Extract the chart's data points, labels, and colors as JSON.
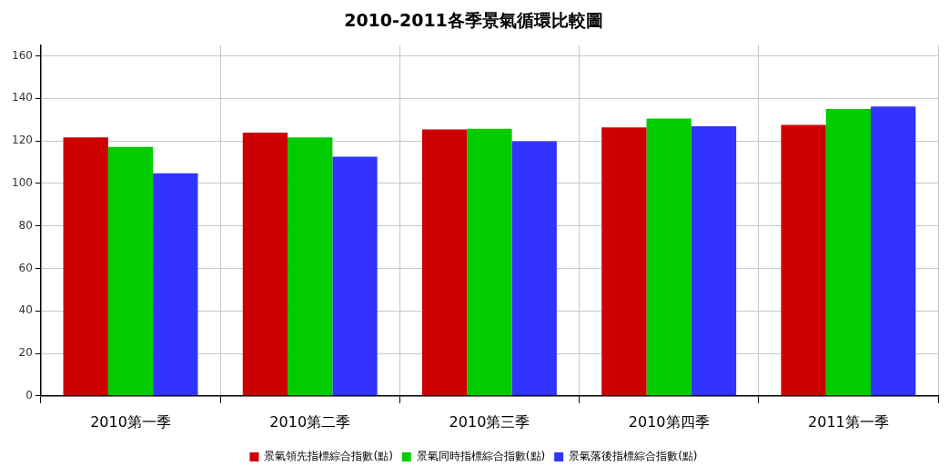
{
  "chart_data": {
    "type": "bar",
    "title": "2010-2011各季景氣循環比較圖",
    "categories": [
      "2010第一季",
      "2010第二季",
      "2010第三季",
      "2010第四季",
      "2011第一季"
    ],
    "series": [
      {
        "name": "景氣領先指標綜合指數(點)",
        "color": "#cc0000",
        "values": [
          121.6,
          123.9,
          125.4,
          126.3,
          127.5
        ]
      },
      {
        "name": "景氣同時指標綜合指數(點)",
        "color": "#00cc00",
        "values": [
          117.1,
          121.6,
          125.7,
          130.5,
          135
        ]
      },
      {
        "name": "景氣落後指標綜合指數(點)",
        "color": "#3333ff",
        "values": [
          104.8,
          112.5,
          119.8,
          126.9,
          136.2
        ]
      }
    ],
    "ylim": [
      0,
      165
    ],
    "yticks": [
      0,
      20,
      40,
      60,
      80,
      100,
      120,
      140,
      160
    ],
    "grid": true,
    "legend": "bottom"
  }
}
